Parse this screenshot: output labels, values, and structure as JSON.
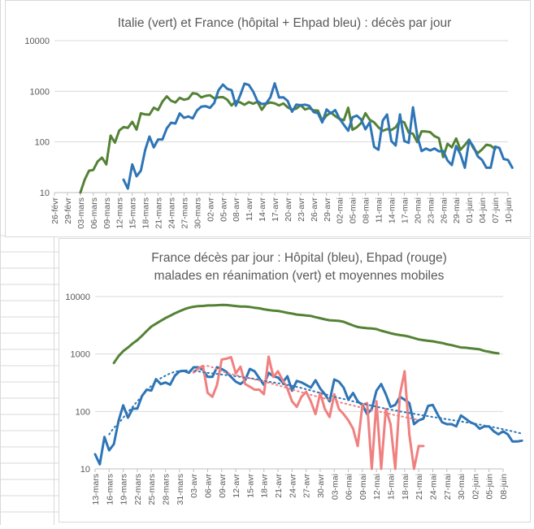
{
  "sheet": {
    "grid_color": "#d9d9d9"
  },
  "chart_data": [
    {
      "type": "line",
      "title": "Italie (vert) et France (hôpital + Ehpad bleu) : décès par jour",
      "y_scale": "log",
      "ylim": [
        10,
        10000
      ],
      "y_ticks": [
        "10",
        "100",
        "1000",
        "10000"
      ],
      "x_tick_labels": [
        "26-févr",
        "29-févr",
        "03-mars",
        "06-mars",
        "09-mars",
        "12-mars",
        "15-mars",
        "18-mars",
        "21-mars",
        "24-mars",
        "27-mars",
        "30-mars",
        "02-avr",
        "05-avr",
        "08-avr",
        "11-avr",
        "14-avr",
        "17-avr",
        "20-avr",
        "23-avr",
        "26-avr",
        "29-avr",
        "02-mai",
        "05-mai",
        "08-mai",
        "11-mai",
        "14-mai",
        "17-mai",
        "20-mai",
        "23-mai",
        "26-mai",
        "29-mai",
        "01-juin",
        "04-juin",
        "07-juin",
        "10-juin"
      ],
      "x_start": "2020-02-26",
      "grid": "horizontal",
      "legend": "none",
      "series": [
        {
          "name": "Italie",
          "color": "#548235",
          "start": "2020-03-03",
          "values": [
            10,
            18,
            27,
            28,
            41,
            49,
            36,
            133,
            97,
            168,
            196,
            189,
            250,
            175,
            368,
            349,
            345,
            475,
            427,
            627,
            793,
            651,
            601,
            743,
            683,
            712,
            919,
            889,
            756,
            812,
            837,
            727,
            760,
            766,
            681,
            525,
            636,
            604,
            542,
            610,
            570,
            619,
            431,
            566,
            602,
            578,
            525,
            575,
            482,
            433,
            454,
            534,
            437,
            464,
            420,
            415,
            260,
            333,
            382,
            323,
            285,
            269,
            474,
            174,
            195,
            236,
            369,
            274,
            243,
            194,
            165,
            179,
            172,
            195,
            262,
            242,
            153,
            145,
            99,
            162,
            161,
            156,
            130,
            119,
            50,
            92,
            78,
            117,
            70,
            87,
            111,
            75,
            60,
            71,
            88,
            85,
            72
          ]
        },
        {
          "name": "France",
          "color": "#2e75b6",
          "start": "2020-03-13",
          "values": [
            18,
            12,
            36,
            21,
            27,
            69,
            128,
            78,
            112,
            112,
            186,
            240,
            231,
            365,
            299,
            319,
            292,
            418,
            499,
            509,
            471,
            588,
            1053,
            1355,
            1120,
            1053,
            518,
            833,
            1417,
            1341,
            987,
            635,
            561,
            574,
            762,
            1438,
            753,
            761,
            642,
            395,
            547,
            531,
            544,
            516,
            389,
            369,
            242,
            437,
            367,
            427,
            289,
            218,
            166,
            306,
            330,
            278,
            178,
            243,
            80,
            70,
            263,
            348,
            104,
            85,
            351,
            104,
            96,
            483,
            131,
            66,
            74,
            68,
            74,
            65,
            66,
            43,
            35,
            83,
            57,
            31,
            107,
            81,
            52,
            44,
            31,
            31,
            81,
            76,
            46,
            44,
            31
          ]
        }
      ]
    },
    {
      "type": "line",
      "title": "France décès par jour : Hôpital (bleu), Ehpad (rouge)",
      "subtitle": "malades en réanimation (vert) et moyennes mobiles",
      "y_scale": "log",
      "ylim": [
        10,
        10000
      ],
      "y_ticks": [
        "10",
        "100",
        "1000",
        "10000"
      ],
      "x_tick_labels": [
        "13-mars",
        "16-mars",
        "19-mars",
        "22-mars",
        "25-mars",
        "28-mars",
        "31-mars",
        "03-avr",
        "06-avr",
        "09-avr",
        "12-avr",
        "15-avr",
        "18-avr",
        "21-avr",
        "24-avr",
        "27-avr",
        "30-avr",
        "03-mai",
        "06-mai",
        "09-mai",
        "12-mai",
        "15-mai",
        "18-mai",
        "21-mai",
        "24-mai",
        "27-mai",
        "30-mai",
        "02-juin",
        "05-juin",
        "08-juin"
      ],
      "x_start": "2020-03-13",
      "grid": "horizontal",
      "legend": "none",
      "series": [
        {
          "name": "Hôpital",
          "color": "#2e75b6",
          "start": "2020-03-13",
          "values": [
            18,
            12,
            36,
            21,
            27,
            69,
            128,
            78,
            112,
            112,
            186,
            240,
            231,
            365,
            299,
            319,
            292,
            418,
            499,
            509,
            471,
            588,
            588,
            530,
            400,
            400,
            590,
            550,
            490,
            400,
            330,
            300,
            350,
            550,
            500,
            380,
            290,
            470,
            410,
            390,
            320,
            410,
            230,
            340,
            320,
            290,
            260,
            350,
            250,
            200,
            150,
            360,
            330,
            260,
            160,
            210,
            150,
            130,
            90,
            110,
            230,
            300,
            200,
            120,
            130,
            180,
            160,
            140,
            60,
            70,
            75,
            125,
            130,
            90,
            65,
            60,
            60,
            55,
            85,
            75,
            65,
            60,
            50,
            55,
            55,
            45,
            40,
            45,
            40,
            30,
            30,
            31
          ]
        },
        {
          "name": "Ehpad",
          "color": "#f08080",
          "start": "2020-04-03",
          "values": [
            480,
            560,
            620,
            210,
            180,
            290,
            800,
            830,
            880,
            460,
            600,
            300,
            270,
            240,
            240,
            200,
            900,
            400,
            500,
            350,
            250,
            150,
            120,
            180,
            220,
            150,
            90,
            210,
            110,
            80,
            200,
            110,
            90,
            70,
            50,
            25,
            130,
            140,
            10,
            150,
            10,
            110,
            60,
            10,
            200,
            500,
            40,
            10,
            25,
            25
          ]
        },
        {
          "name": "Réanimation",
          "color": "#548235",
          "start": "2020-03-17",
          "values": [
            699,
            920,
            1122,
            1297,
            1525,
            1746,
            2082,
            2516,
            3001,
            3375,
            3787,
            4236,
            4632,
            5107,
            5565,
            6017,
            6399,
            6662,
            6838,
            6872,
            7004,
            7019,
            7072,
            7148,
            7131,
            6991,
            6845,
            6714,
            6730,
            6599,
            6402,
            6248,
            6017,
            5833,
            5683,
            5639,
            5433,
            5218,
            5053,
            4870,
            4785,
            4682,
            4608,
            4387,
            4207,
            4019,
            3878,
            3827,
            3770,
            3639,
            3375,
            3147,
            2961,
            2868,
            2812,
            2776,
            2712,
            2542,
            2428,
            2299,
            2203,
            2132,
            2087,
            1998,
            1894,
            1794,
            1745,
            1701,
            1665,
            1609,
            1555,
            1479,
            1429,
            1361,
            1302,
            1288,
            1260,
            1229,
            1208,
            1136,
            1094,
            1053,
            1025
          ]
        },
        {
          "name": "Hôpital moyenne mobile",
          "color": "#2e75b6",
          "dash": "dotted",
          "start": "2020-03-16",
          "values": [
            40,
            52,
            62,
            78,
            98,
            120,
            150,
            185,
            230,
            280,
            330,
            380,
            420,
            460,
            490,
            510,
            520,
            520,
            510,
            500,
            480,
            470,
            460,
            450,
            440,
            430,
            420,
            410,
            400,
            390,
            380,
            370,
            355,
            340,
            330,
            320,
            310,
            300,
            290,
            280,
            268,
            256,
            244,
            232,
            220,
            210,
            200,
            190,
            180,
            172,
            165,
            158,
            150,
            143,
            137,
            131,
            126,
            121,
            116,
            112,
            108,
            104,
            100,
            97,
            94,
            91,
            88,
            85,
            83,
            80,
            78,
            76,
            73,
            71,
            69,
            67,
            65,
            63,
            61,
            59,
            57,
            55,
            53,
            51,
            49,
            47,
            45,
            43,
            41
          ]
        },
        {
          "name": "Ehpad moyenne mobile",
          "color": "#f08080",
          "dash": "dotted",
          "start": "2020-04-05",
          "values": [
            600,
            620,
            590,
            540,
            500,
            470,
            450,
            430,
            410,
            390,
            380,
            360,
            345,
            330,
            315,
            300,
            285,
            270,
            255,
            240,
            228,
            216,
            205,
            195,
            185,
            176,
            168,
            160,
            152,
            145,
            139,
            133,
            127,
            121,
            116,
            111,
            106,
            102,
            98,
            94,
            90,
            86,
            83,
            80,
            77,
            74,
            71
          ]
        }
      ]
    }
  ]
}
